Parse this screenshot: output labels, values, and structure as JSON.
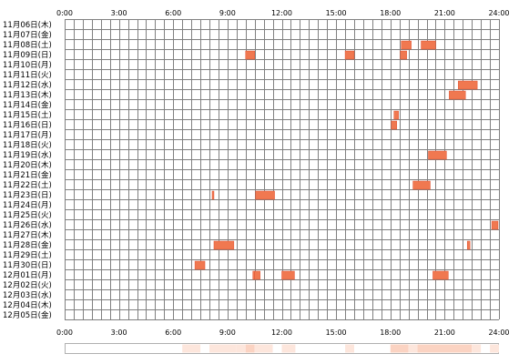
{
  "colors": {
    "background": "#ffffff",
    "grid": "#808080",
    "bar_fill": "#f07850",
    "bar_edge": "#e05030",
    "heat_light": "#fde6dc",
    "heat_mid": "#fbd3c2",
    "heat_border": "#b0b0b0"
  },
  "chart_data": {
    "type": "heatmap",
    "title": "",
    "xlabel": "",
    "ylabel": "",
    "x_range": [
      0,
      24
    ],
    "x_tick_values": [
      0,
      3,
      6,
      9,
      12,
      15,
      18,
      21,
      24
    ],
    "x_tick_labels": [
      "0:00",
      "3:00",
      "6:00",
      "9:00",
      "12:00",
      "15:00",
      "18:00",
      "21:00",
      "24:00"
    ],
    "grid": true,
    "rows": [
      {
        "label": "11月06日(木)",
        "intervals": []
      },
      {
        "label": "11月07日(金)",
        "intervals": []
      },
      {
        "label": "11月08日(土)",
        "intervals": [
          [
            18.6,
            19.15
          ],
          [
            19.7,
            20.5
          ]
        ]
      },
      {
        "label": "11月09日(日)",
        "intervals": [
          [
            10.0,
            10.5
          ],
          [
            15.5,
            16.0
          ],
          [
            18.55,
            18.9
          ]
        ]
      },
      {
        "label": "11月10日(月)",
        "intervals": []
      },
      {
        "label": "11月11日(火)",
        "intervals": []
      },
      {
        "label": "11月12日(水)",
        "intervals": [
          [
            21.75,
            22.8
          ]
        ]
      },
      {
        "label": "11月13日(木)",
        "intervals": [
          [
            21.25,
            22.15
          ]
        ]
      },
      {
        "label": "11月14日(金)",
        "intervals": []
      },
      {
        "label": "11月15日(土)",
        "intervals": [
          [
            18.2,
            18.45
          ]
        ]
      },
      {
        "label": "11月16日(日)",
        "intervals": [
          [
            18.05,
            18.35
          ]
        ]
      },
      {
        "label": "11月17日(月)",
        "intervals": []
      },
      {
        "label": "11月18日(火)",
        "intervals": []
      },
      {
        "label": "11月19日(水)",
        "intervals": [
          [
            20.1,
            21.1
          ]
        ]
      },
      {
        "label": "11月20日(木)",
        "intervals": []
      },
      {
        "label": "11月21日(金)",
        "intervals": []
      },
      {
        "label": "11月22日(土)",
        "intervals": [
          [
            19.25,
            20.2
          ]
        ]
      },
      {
        "label": "11月23日(日)",
        "intervals": [
          [
            8.15,
            8.25
          ],
          [
            10.55,
            11.6
          ]
        ]
      },
      {
        "label": "11月24日(月)",
        "intervals": []
      },
      {
        "label": "11月25日(火)",
        "intervals": []
      },
      {
        "label": "11月26日(水)",
        "intervals": [
          [
            23.6,
            23.95
          ]
        ]
      },
      {
        "label": "11月27日(木)",
        "intervals": []
      },
      {
        "label": "11月28日(金)",
        "intervals": [
          [
            8.25,
            9.35
          ],
          [
            22.25,
            22.4
          ]
        ]
      },
      {
        "label": "11月29日(土)",
        "intervals": []
      },
      {
        "label": "11月30日(日)",
        "intervals": [
          [
            7.2,
            7.75
          ]
        ]
      },
      {
        "label": "12月01日(月)",
        "intervals": [
          [
            10.4,
            10.5
          ],
          [
            10.5,
            10.8
          ],
          [
            12.0,
            12.7
          ],
          [
            20.35,
            21.2
          ]
        ]
      },
      {
        "label": "12月02日(火)",
        "intervals": []
      },
      {
        "label": "12月03日(水)",
        "intervals": []
      },
      {
        "label": "12月04日(木)",
        "intervals": []
      },
      {
        "label": "12月05日(金)",
        "intervals": []
      }
    ],
    "summary_strip": [
      {
        "start": 6.5,
        "end": 7.5,
        "level": 1
      },
      {
        "start": 8.0,
        "end": 9.5,
        "level": 1
      },
      {
        "start": 9.5,
        "end": 10.0,
        "level": 1
      },
      {
        "start": 10.0,
        "end": 10.5,
        "level": 2
      },
      {
        "start": 10.5,
        "end": 11.5,
        "level": 1
      },
      {
        "start": 12.0,
        "end": 12.75,
        "level": 1
      },
      {
        "start": 15.5,
        "end": 16.0,
        "level": 1
      },
      {
        "start": 18.0,
        "end": 19.0,
        "level": 2
      },
      {
        "start": 19.0,
        "end": 19.5,
        "level": 1
      },
      {
        "start": 19.5,
        "end": 22.5,
        "level": 2
      },
      {
        "start": 22.5,
        "end": 23.0,
        "level": 1
      },
      {
        "start": 23.5,
        "end": 24.0,
        "level": 1
      }
    ]
  }
}
